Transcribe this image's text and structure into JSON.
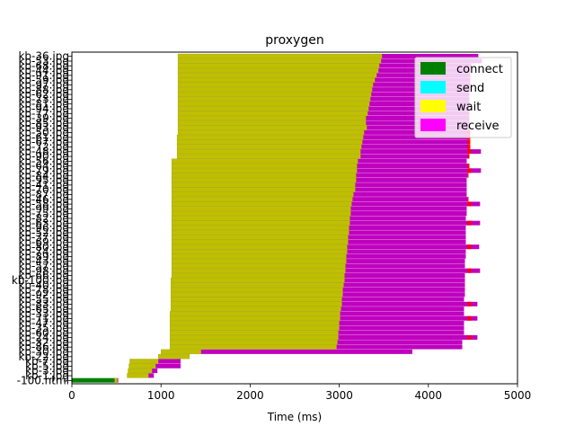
{
  "chart_data": {
    "type": "bar",
    "orientation": "horizontal",
    "stacked": true,
    "title": "proxygen",
    "xlabel": "Time (ms)",
    "ylabel": "",
    "xlim": [
      0,
      5000
    ],
    "xticks": [
      0,
      1000,
      2000,
      3000,
      4000,
      5000
    ],
    "xtick_labels": [
      "0",
      "1000",
      "2000",
      "3000",
      "4000",
      "5000"
    ],
    "ytick_labels": [
      "kb-36.jpg",
      "kb-53.jpg",
      "kb-68.jpg",
      "kb-44.jpg",
      "kb-91.jpg",
      "kb-59.jpg",
      "kb-97.jpg",
      "kb-88.jpg",
      "kb-62.jpg",
      "kb-73.jpg",
      "kb-81.jpg",
      "kb-94.jpg",
      "kb-77.jpg",
      "kb-39.jpg",
      "kb-85.jpg",
      "kb-93.jpg",
      "kb-50.jpg",
      "kb-61.jpg",
      "kb-67.jpg",
      "kb-72.jpg",
      "kb-48.jpg",
      "kb-90.jpg",
      "kb-56.jpg",
      "kb-64.jpg",
      "kb-79.jpg",
      "kb-84.jpg",
      "kb-95.jpg",
      "kb-41.jpg",
      "kb-70.jpg",
      "kb-87.jpg",
      "kb-46.jpg",
      "kb-58.jpg",
      "kb-99.jpg",
      "kb-75.jpg",
      "kb-82.jpg",
      "kb-63.jpg",
      "kb-96.jpg",
      "kb-52.jpg",
      "kb-37.jpg",
      "kb-69.jpg",
      "kb-80.jpg",
      "kb-74.jpg",
      "kb-89.jpg",
      "kb-43.jpg",
      "kb-57.jpg",
      "kb-98.jpg",
      "kb-66.jpg",
      "kb-100.jpg",
      "kb-40.jpg",
      "kb-78.jpg",
      "kb-92.jpg",
      "kb-55.jpg",
      "kb-83.jpg",
      "kb-65.jpg",
      "kb-33.jpg",
      "kb-71.jpg",
      "kb-47.jpg",
      "kb-35.jpg",
      "kb-60.jpg",
      "kb-24.jpg",
      "kb-32.jpg",
      "kb-86.jpg",
      "kb-30.jpg",
      "kb-22.jpg",
      "kb-7.jpg",
      "kb-5.jpg",
      "kb-3.jpg",
      "kb-1.jpg",
      "-100.html"
    ],
    "legend": {
      "position": "upper-right",
      "entries": [
        {
          "name": "connect",
          "color": "#008000"
        },
        {
          "name": "send",
          "color": "#00ffff"
        },
        {
          "name": "wait",
          "color": "#ffff00"
        },
        {
          "name": "receive",
          "color": "#ff00ff"
        }
      ]
    },
    "note_colors": {
      "wait_drawn": "#bfbf00",
      "receive_drawn": "#bf00bf",
      "overrun": "#ff0000"
    },
    "requests_top_to_bottom": [
      {
        "start": 1190,
        "wait_end": 3480,
        "end": 4560
      },
      {
        "start": 1190,
        "wait_end": 3470,
        "end": 4600
      },
      {
        "start": 1190,
        "wait_end": 3450,
        "end": 4480
      },
      {
        "start": 1190,
        "wait_end": 3440,
        "end": 4470
      },
      {
        "start": 1190,
        "wait_end": 3420,
        "end": 4470
      },
      {
        "start": 1190,
        "wait_end": 3400,
        "end": 4470
      },
      {
        "start": 1190,
        "wait_end": 3380,
        "end": 4470
      },
      {
        "start": 1190,
        "wait_end": 3370,
        "end": 4470
      },
      {
        "start": 1190,
        "wait_end": 3360,
        "end": 4460
      },
      {
        "start": 1190,
        "wait_end": 3350,
        "end": 4460
      },
      {
        "start": 1190,
        "wait_end": 3340,
        "end": 4460
      },
      {
        "start": 1190,
        "wait_end": 3330,
        "end": 4460
      },
      {
        "start": 1190,
        "wait_end": 3320,
        "end": 4460
      },
      {
        "start": 1190,
        "wait_end": 3300,
        "end": 4460
      },
      {
        "start": 1190,
        "wait_end": 3300,
        "end": 4460
      },
      {
        "start": 1190,
        "wait_end": 3310,
        "end": 4460
      },
      {
        "start": 1190,
        "wait_end": 3280,
        "end": 4460
      },
      {
        "start": 1180,
        "wait_end": 3270,
        "end": 4460
      },
      {
        "start": 1180,
        "wait_end": 3260,
        "end": 4460
      },
      {
        "start": 1180,
        "wait_end": 3250,
        "end": 4460
      },
      {
        "start": 1180,
        "wait_end": 3240,
        "end": 4590
      },
      {
        "start": 1180,
        "wait_end": 3240,
        "end": 4450
      },
      {
        "start": 1120,
        "wait_end": 3210,
        "end": 4430
      },
      {
        "start": 1120,
        "wait_end": 3200,
        "end": 4450
      },
      {
        "start": 1120,
        "wait_end": 3200,
        "end": 4590
      },
      {
        "start": 1120,
        "wait_end": 3190,
        "end": 4440
      },
      {
        "start": 1120,
        "wait_end": 3190,
        "end": 4430
      },
      {
        "start": 1120,
        "wait_end": 3180,
        "end": 4430
      },
      {
        "start": 1120,
        "wait_end": 3180,
        "end": 4430
      },
      {
        "start": 1120,
        "wait_end": 3160,
        "end": 4430
      },
      {
        "start": 1120,
        "wait_end": 3150,
        "end": 4440
      },
      {
        "start": 1120,
        "wait_end": 3140,
        "end": 4580
      },
      {
        "start": 1120,
        "wait_end": 3130,
        "end": 4430
      },
      {
        "start": 1120,
        "wait_end": 3130,
        "end": 4430
      },
      {
        "start": 1120,
        "wait_end": 3120,
        "end": 4420
      },
      {
        "start": 1120,
        "wait_end": 3120,
        "end": 4580
      },
      {
        "start": 1120,
        "wait_end": 3110,
        "end": 4420
      },
      {
        "start": 1120,
        "wait_end": 3110,
        "end": 4420
      },
      {
        "start": 1120,
        "wait_end": 3100,
        "end": 4420
      },
      {
        "start": 1120,
        "wait_end": 3100,
        "end": 4420
      },
      {
        "start": 1120,
        "wait_end": 3090,
        "end": 4570
      },
      {
        "start": 1120,
        "wait_end": 3090,
        "end": 4420
      },
      {
        "start": 1120,
        "wait_end": 3080,
        "end": 4420
      },
      {
        "start": 1120,
        "wait_end": 3080,
        "end": 4410
      },
      {
        "start": 1120,
        "wait_end": 3070,
        "end": 4410
      },
      {
        "start": 1120,
        "wait_end": 3070,
        "end": 4580
      },
      {
        "start": 1120,
        "wait_end": 3060,
        "end": 4410
      },
      {
        "start": 1110,
        "wait_end": 3060,
        "end": 4410
      },
      {
        "start": 1110,
        "wait_end": 3050,
        "end": 4410
      },
      {
        "start": 1110,
        "wait_end": 3040,
        "end": 4410
      },
      {
        "start": 1110,
        "wait_end": 3040,
        "end": 4410
      },
      {
        "start": 1110,
        "wait_end": 3030,
        "end": 4400
      },
      {
        "start": 1110,
        "wait_end": 3030,
        "end": 4550
      },
      {
        "start": 1110,
        "wait_end": 3020,
        "end": 4400
      },
      {
        "start": 1100,
        "wait_end": 3010,
        "end": 4400
      },
      {
        "start": 1100,
        "wait_end": 3010,
        "end": 4550
      },
      {
        "start": 1100,
        "wait_end": 3000,
        "end": 4400
      },
      {
        "start": 1100,
        "wait_end": 3000,
        "end": 4400
      },
      {
        "start": 1100,
        "wait_end": 2990,
        "end": 4400
      },
      {
        "start": 1100,
        "wait_end": 2990,
        "end": 4550
      },
      {
        "start": 1100,
        "wait_end": 2980,
        "end": 4380
      },
      {
        "start": 1100,
        "wait_end": 2970,
        "end": 4380
      },
      {
        "start": 1000,
        "wait_end": 1450,
        "end": 3820
      },
      {
        "start": 970,
        "wait_end": 1320,
        "end": 1320
      },
      {
        "start": 650,
        "wait_end": 970,
        "end": 1220
      },
      {
        "start": 640,
        "wait_end": 940,
        "end": 1220
      },
      {
        "start": 630,
        "wait_end": 900,
        "end": 960
      },
      {
        "start": 620,
        "wait_end": 860,
        "end": 920
      },
      {
        "start": 0,
        "connect_end": 480,
        "wait_end": 510,
        "end": 520
      }
    ]
  }
}
